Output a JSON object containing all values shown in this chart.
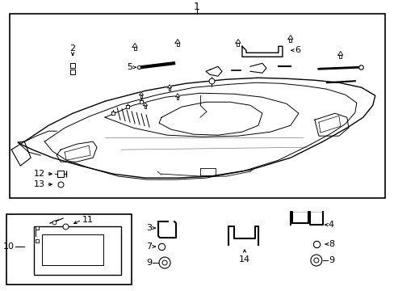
{
  "bg_color": "#ffffff",
  "line_color": "#000000",
  "text_color": "#000000",
  "fs": 7.5,
  "fs_title": 9
}
